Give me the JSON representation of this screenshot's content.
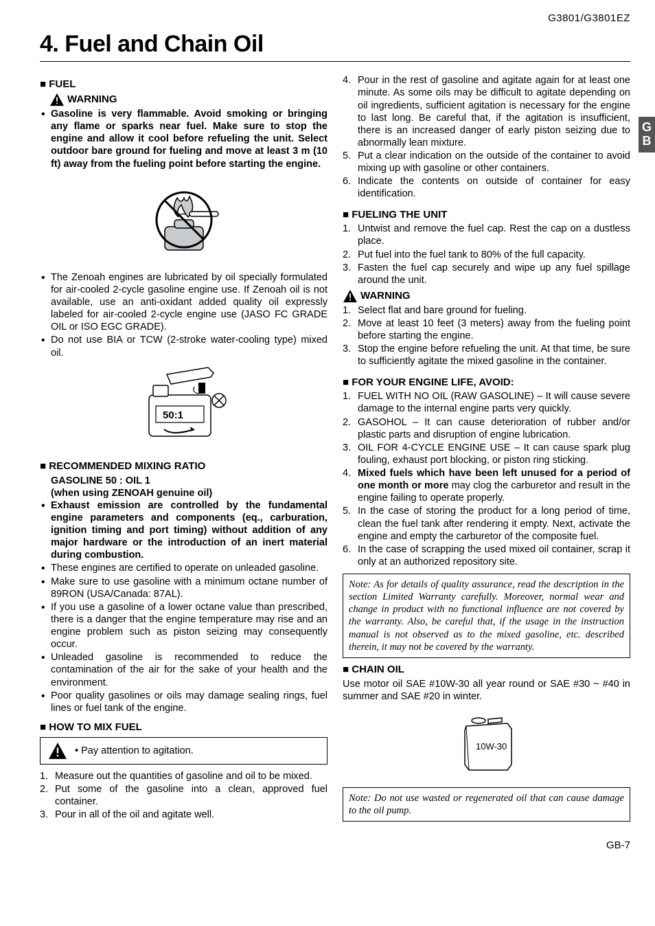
{
  "header": {
    "model": "G3801/G3801EZ"
  },
  "title": "4. Fuel and Chain Oil",
  "sideTab": {
    "line1": "G",
    "line2": "B"
  },
  "left": {
    "fuel": {
      "head": "FUEL",
      "warningLabel": "WARNING",
      "warningBullet": "Gasoline is very flammable. Avoid smoking or bringing any flame or sparks near fuel. Make sure to stop the engine and allow it cool before refueling the unit. Select outdoor bare ground for fueling and move at least 3 m (10 ft) away from the fueling point before starting the engine.",
      "bullets2": [
        "The Zenoah engines are lubricated by oil specially formulated for air-cooled 2-cycle gasoline engine use. If Zenoah oil is not available, use an anti-oxidant added quality oil expressly labeled for air-cooled 2-cycle engine use (JASO FC GRADE OIL or ISO EGC GRADE).",
        "Do not use BIA or TCW (2-stroke water-cooling type) mixed oil."
      ],
      "mixHead": "RECOMMENDED MIXING RATIO",
      "mixLine1": "GASOLINE 50 : OIL 1",
      "mixLine2": "(when using  ZENOAH genuine oil)",
      "bullets3": [
        "Exhaust emission are controlled by the fundamental engine parameters and components (eq., carburation, ignition timing and port timing) without addition of any major hardware or the introduction of an inert material during combustion.",
        "These engines are certified to operate on unleaded gasoline.",
        "Make sure to use gasoline with a minimum octane number of 89RON (USA/Canada: 87AL).",
        "If you use a gasoline of a lower octane value than prescribed, there is a danger that the engine temperature may rise and an engine problem such as piston seizing may consequently occur.",
        "Unleaded gasoline is recommended to reduce the contamination of the air for the sake of your health and the environment.",
        "Poor quality gasolines or oils may damage sealing rings, fuel lines or fuel tank of the engine."
      ],
      "bullets3_bold": [
        true,
        false,
        false,
        false,
        false,
        false
      ]
    },
    "howmix": {
      "head": "HOW TO MIX FUEL",
      "attn": "Pay attention to agitation.",
      "steps": [
        "Measure out the quantities of gasoline and oil to be mixed.",
        "Put some of the gasoline into a clean, approved fuel container.",
        "Pour in all of the oil and agitate well."
      ]
    }
  },
  "right": {
    "contSteps": [
      "Pour in the rest of gasoline and agitate again for at least one minute. As some oils may be difficult to agitate depending on oil ingredients, sufficient agitation is necessary for the engine to last long. Be careful that, if the agitation is insufficient, there is an increased danger of early piston seizing due to abnormally lean mixture.",
      "Put a clear indication on the outside of the container to avoid mixing up with gasoline or other containers.",
      "Indicate the contents on outside of container for easy identification."
    ],
    "contStart": 4,
    "fueling": {
      "head": "FUELING THE UNIT",
      "steps": [
        "Untwist and remove the fuel cap. Rest the cap on a dustless place.",
        "Put fuel into the fuel tank to 80% of the full capacity.",
        "Fasten the fuel cap securely and wipe up any fuel spillage around the unit."
      ],
      "warningLabel": "WARNING",
      "warnSteps": [
        "Select flat and bare ground for fueling.",
        "Move at least 10 feet (3 meters) away from the fueling point before starting the engine.",
        "Stop the engine before refueling the unit. At that time, be sure to sufficiently agitate the mixed gasoline in the container."
      ]
    },
    "avoid": {
      "head": "FOR YOUR ENGINE LIFE, AVOID:",
      "items": [
        "FUEL WITH NO OIL (RAW GASOLINE) – It will cause severe damage to the internal engine parts very quickly.",
        "GASOHOL – It can cause deterioration of rubber and/or plastic parts and disruption of engine lubrication.",
        "OIL FOR 4-CYCLE ENGINE USE – It can cause spark plug fouling, exhaust port blocking, or piston ring sticking.",
        "",
        "In the case of storing the product for a long period of time, clean the fuel tank after rendering it empty. Next, activate the engine and empty the carburetor of the composite fuel.",
        "In the case of scrapping the used mixed oil container, scrap it only at an authorized repository site."
      ],
      "item4_bold": "Mixed fuels which have been left unused for a period of one month or more",
      "item4_rest": " may clog the carburetor and result in the engine failing to operate properly."
    },
    "note1": "Note: As for details of quality assurance, read the description in the section Limited Warranty carefully. Moreover, normal wear and change in product with no functional influence are not covered by the warranty. Also, be careful that, if the usage in the instruction manual is not observed as to the mixed gasoline, etc. described therein, it may not be covered by the warranty.",
    "chainoil": {
      "head": "CHAIN OIL",
      "text": "Use motor oil SAE #10W-30 all year round or SAE #30 ~ #40 in summer and SAE #20 in winter.",
      "figLabel": "10W-30"
    },
    "note2": "Note: Do not use wasted or regenerated oil that can cause damage to the oil pump."
  },
  "footer": {
    "page": "GB-7"
  },
  "style": {
    "bg": "#ffffff",
    "text": "#000000",
    "tabBg": "#555555",
    "tabText": "#ffffff"
  }
}
